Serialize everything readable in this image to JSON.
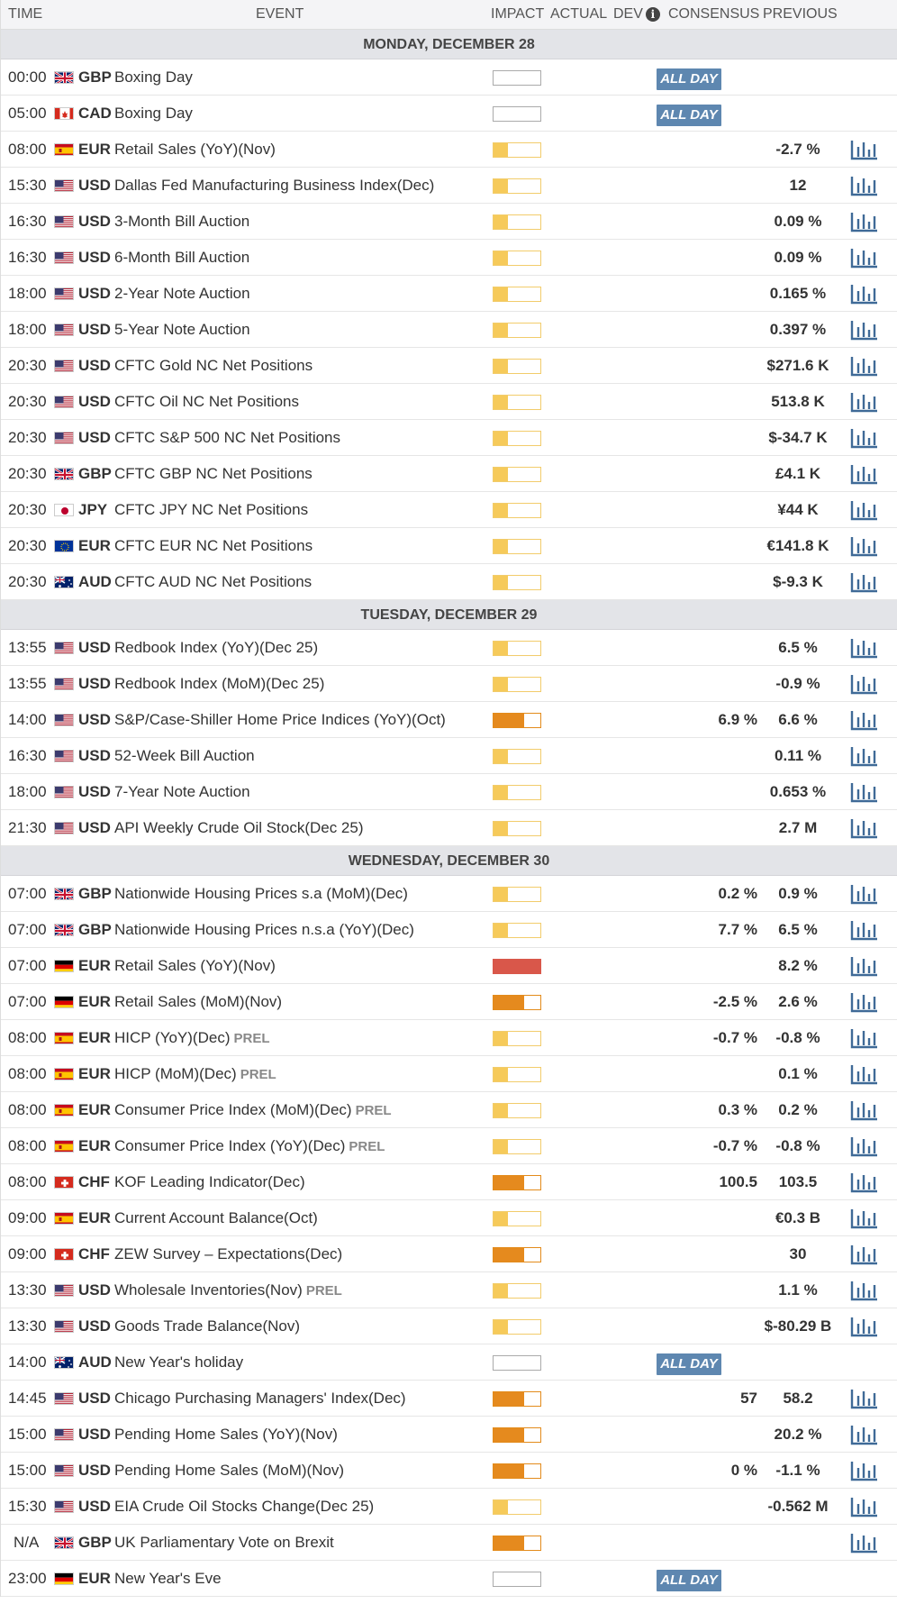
{
  "header": {
    "time": "TIME",
    "event": "EVENT",
    "impact": "IMPACT",
    "actual": "ACTUAL",
    "dev": "DEV",
    "info_icon": "i",
    "consensus": "CONSENSUS",
    "previous": "PREVIOUS"
  },
  "colors": {
    "impact_low": "#f6ca5a",
    "impact_medium": "#e58a1e",
    "impact_high": "#d9574a",
    "all_day_badge": "#5e87b0",
    "chart_icon": "#3f6a97"
  },
  "days": [
    {
      "label": "MONDAY, DECEMBER 28",
      "events": [
        {
          "time": "00:00",
          "flag": "gb",
          "currency": "GBP",
          "name": "Boxing Day",
          "prel": "",
          "impact": "none",
          "all_day": "ALL DAY",
          "consensus": "",
          "previous": "",
          "chart": false
        },
        {
          "time": "05:00",
          "flag": "ca",
          "currency": "CAD",
          "name": "Boxing Day",
          "prel": "",
          "impact": "none",
          "all_day": "ALL DAY",
          "consensus": "",
          "previous": "",
          "chart": false
        },
        {
          "time": "08:00",
          "flag": "es",
          "currency": "EUR",
          "name": "Retail Sales (YoY)(Nov)",
          "prel": "",
          "impact": "low",
          "all_day": "",
          "consensus": "",
          "previous": "-2.7 %",
          "chart": true
        },
        {
          "time": "15:30",
          "flag": "us",
          "currency": "USD",
          "name": "Dallas Fed Manufacturing Business Index(Dec)",
          "prel": "",
          "impact": "low",
          "all_day": "",
          "consensus": "",
          "previous": "12",
          "chart": true
        },
        {
          "time": "16:30",
          "flag": "us",
          "currency": "USD",
          "name": "3-Month Bill Auction",
          "prel": "",
          "impact": "low",
          "all_day": "",
          "consensus": "",
          "previous": "0.09 %",
          "chart": true
        },
        {
          "time": "16:30",
          "flag": "us",
          "currency": "USD",
          "name": "6-Month Bill Auction",
          "prel": "",
          "impact": "low",
          "all_day": "",
          "consensus": "",
          "previous": "0.09 %",
          "chart": true
        },
        {
          "time": "18:00",
          "flag": "us",
          "currency": "USD",
          "name": "2-Year Note Auction",
          "prel": "",
          "impact": "low",
          "all_day": "",
          "consensus": "",
          "previous": "0.165 %",
          "chart": true
        },
        {
          "time": "18:00",
          "flag": "us",
          "currency": "USD",
          "name": "5-Year Note Auction",
          "prel": "",
          "impact": "low",
          "all_day": "",
          "consensus": "",
          "previous": "0.397 %",
          "chart": true
        },
        {
          "time": "20:30",
          "flag": "us",
          "currency": "USD",
          "name": "CFTC Gold NC Net Positions",
          "prel": "",
          "impact": "low",
          "all_day": "",
          "consensus": "",
          "previous": "$271.6 K",
          "chart": true
        },
        {
          "time": "20:30",
          "flag": "us",
          "currency": "USD",
          "name": "CFTC Oil NC Net Positions",
          "prel": "",
          "impact": "low",
          "all_day": "",
          "consensus": "",
          "previous": "513.8 K",
          "chart": true
        },
        {
          "time": "20:30",
          "flag": "us",
          "currency": "USD",
          "name": "CFTC S&P 500 NC Net Positions",
          "prel": "",
          "impact": "low",
          "all_day": "",
          "consensus": "",
          "previous": "$-34.7 K",
          "chart": true
        },
        {
          "time": "20:30",
          "flag": "gb",
          "currency": "GBP",
          "name": "CFTC GBP NC Net Positions",
          "prel": "",
          "impact": "low",
          "all_day": "",
          "consensus": "",
          "previous": "£4.1 K",
          "chart": true
        },
        {
          "time": "20:30",
          "flag": "jp",
          "currency": "JPY",
          "name": "CFTC JPY NC Net Positions",
          "prel": "",
          "impact": "low",
          "all_day": "",
          "consensus": "",
          "previous": "¥44 K",
          "chart": true
        },
        {
          "time": "20:30",
          "flag": "eu",
          "currency": "EUR",
          "name": "CFTC EUR NC Net Positions",
          "prel": "",
          "impact": "low",
          "all_day": "",
          "consensus": "",
          "previous": "€141.8 K",
          "chart": true
        },
        {
          "time": "20:30",
          "flag": "au",
          "currency": "AUD",
          "name": "CFTC AUD NC Net Positions",
          "prel": "",
          "impact": "low",
          "all_day": "",
          "consensus": "",
          "previous": "$-9.3 K",
          "chart": true
        }
      ]
    },
    {
      "label": "TUESDAY, DECEMBER 29",
      "events": [
        {
          "time": "13:55",
          "flag": "us",
          "currency": "USD",
          "name": "Redbook Index (YoY)(Dec 25)",
          "prel": "",
          "impact": "low",
          "all_day": "",
          "consensus": "",
          "previous": "6.5 %",
          "chart": true
        },
        {
          "time": "13:55",
          "flag": "us",
          "currency": "USD",
          "name": "Redbook Index (MoM)(Dec 25)",
          "prel": "",
          "impact": "low",
          "all_day": "",
          "consensus": "",
          "previous": "-0.9 %",
          "chart": true
        },
        {
          "time": "14:00",
          "flag": "us",
          "currency": "USD",
          "name": "S&P/Case-Shiller Home Price Indices (YoY)(Oct)",
          "prel": "",
          "impact": "medium",
          "all_day": "",
          "consensus": "6.9 %",
          "previous": "6.6 %",
          "chart": true
        },
        {
          "time": "16:30",
          "flag": "us",
          "currency": "USD",
          "name": "52-Week Bill Auction",
          "prel": "",
          "impact": "low",
          "all_day": "",
          "consensus": "",
          "previous": "0.11 %",
          "chart": true
        },
        {
          "time": "18:00",
          "flag": "us",
          "currency": "USD",
          "name": "7-Year Note Auction",
          "prel": "",
          "impact": "low",
          "all_day": "",
          "consensus": "",
          "previous": "0.653 %",
          "chart": true
        },
        {
          "time": "21:30",
          "flag": "us",
          "currency": "USD",
          "name": "API Weekly Crude Oil Stock(Dec 25)",
          "prel": "",
          "impact": "low",
          "all_day": "",
          "consensus": "",
          "previous": "2.7 M",
          "chart": true
        }
      ]
    },
    {
      "label": "WEDNESDAY, DECEMBER 30",
      "events": [
        {
          "time": "07:00",
          "flag": "gb",
          "currency": "GBP",
          "name": "Nationwide Housing Prices s.a (MoM)(Dec)",
          "prel": "",
          "impact": "low",
          "all_day": "",
          "consensus": "0.2 %",
          "previous": "0.9 %",
          "chart": true
        },
        {
          "time": "07:00",
          "flag": "gb",
          "currency": "GBP",
          "name": "Nationwide Housing Prices n.s.a (YoY)(Dec)",
          "prel": "",
          "impact": "low",
          "all_day": "",
          "consensus": "7.7 %",
          "previous": "6.5 %",
          "chart": true
        },
        {
          "time": "07:00",
          "flag": "de",
          "currency": "EUR",
          "name": "Retail Sales (YoY)(Nov)",
          "prel": "",
          "impact": "high",
          "all_day": "",
          "consensus": "",
          "previous": "8.2 %",
          "chart": true
        },
        {
          "time": "07:00",
          "flag": "de",
          "currency": "EUR",
          "name": "Retail Sales (MoM)(Nov)",
          "prel": "",
          "impact": "medium",
          "all_day": "",
          "consensus": "-2.5 %",
          "previous": "2.6 %",
          "chart": true
        },
        {
          "time": "08:00",
          "flag": "es",
          "currency": "EUR",
          "name": "HICP (YoY)(Dec)",
          "prel": "PREL",
          "impact": "low",
          "all_day": "",
          "consensus": "-0.7 %",
          "previous": "-0.8 %",
          "chart": true
        },
        {
          "time": "08:00",
          "flag": "es",
          "currency": "EUR",
          "name": "HICP (MoM)(Dec)",
          "prel": "PREL",
          "impact": "low",
          "all_day": "",
          "consensus": "",
          "previous": "0.1 %",
          "chart": true
        },
        {
          "time": "08:00",
          "flag": "es",
          "currency": "EUR",
          "name": "Consumer Price Index (MoM)(Dec)",
          "prel": "PREL",
          "impact": "low",
          "all_day": "",
          "consensus": "0.3 %",
          "previous": "0.2 %",
          "chart": true
        },
        {
          "time": "08:00",
          "flag": "es",
          "currency": "EUR",
          "name": "Consumer Price Index (YoY)(Dec)",
          "prel": "PREL",
          "impact": "low",
          "all_day": "",
          "consensus": "-0.7 %",
          "previous": "-0.8 %",
          "chart": true
        },
        {
          "time": "08:00",
          "flag": "ch",
          "currency": "CHF",
          "name": "KOF Leading Indicator(Dec)",
          "prel": "",
          "impact": "medium",
          "all_day": "",
          "consensus": "100.5",
          "previous": "103.5",
          "chart": true
        },
        {
          "time": "09:00",
          "flag": "es",
          "currency": "EUR",
          "name": "Current Account Balance(Oct)",
          "prel": "",
          "impact": "low",
          "all_day": "",
          "consensus": "",
          "previous": "€0.3 B",
          "chart": true
        },
        {
          "time": "09:00",
          "flag": "ch",
          "currency": "CHF",
          "name": "ZEW Survey – Expectations(Dec)",
          "prel": "",
          "impact": "medium",
          "all_day": "",
          "consensus": "",
          "previous": "30",
          "chart": true
        },
        {
          "time": "13:30",
          "flag": "us",
          "currency": "USD",
          "name": "Wholesale Inventories(Nov)",
          "prel": "PREL",
          "impact": "low",
          "all_day": "",
          "consensus": "",
          "previous": "1.1 %",
          "chart": true
        },
        {
          "time": "13:30",
          "flag": "us",
          "currency": "USD",
          "name": "Goods Trade Balance(Nov)",
          "prel": "",
          "impact": "low",
          "all_day": "",
          "consensus": "",
          "previous": "$-80.29 B",
          "chart": true
        },
        {
          "time": "14:00",
          "flag": "au",
          "currency": "AUD",
          "name": "New Year's holiday",
          "prel": "",
          "impact": "none",
          "all_day": "ALL DAY",
          "consensus": "",
          "previous": "",
          "chart": false
        },
        {
          "time": "14:45",
          "flag": "us",
          "currency": "USD",
          "name": "Chicago Purchasing Managers' Index(Dec)",
          "prel": "",
          "impact": "medium",
          "all_day": "",
          "consensus": "57",
          "previous": "58.2",
          "chart": true
        },
        {
          "time": "15:00",
          "flag": "us",
          "currency": "USD",
          "name": "Pending Home Sales (YoY)(Nov)",
          "prel": "",
          "impact": "medium",
          "all_day": "",
          "consensus": "",
          "previous": "20.2 %",
          "chart": true
        },
        {
          "time": "15:00",
          "flag": "us",
          "currency": "USD",
          "name": "Pending Home Sales (MoM)(Nov)",
          "prel": "",
          "impact": "medium",
          "all_day": "",
          "consensus": "0 %",
          "previous": "-1.1 %",
          "chart": true
        },
        {
          "time": "15:30",
          "flag": "us",
          "currency": "USD",
          "name": "EIA Crude Oil Stocks Change(Dec 25)",
          "prel": "",
          "impact": "low",
          "all_day": "",
          "consensus": "",
          "previous": "-0.562 M",
          "chart": true
        },
        {
          "time": "N/A",
          "flag": "gb",
          "currency": "GBP",
          "name": "UK Parliamentary Vote on Brexit",
          "prel": "",
          "impact": "medium",
          "all_day": "",
          "consensus": "",
          "previous": "",
          "chart": true
        },
        {
          "time": "23:00",
          "flag": "de",
          "currency": "EUR",
          "name": "New Year's Eve",
          "prel": "",
          "impact": "none",
          "all_day": "ALL DAY",
          "consensus": "",
          "previous": "",
          "chart": false
        }
      ]
    }
  ]
}
